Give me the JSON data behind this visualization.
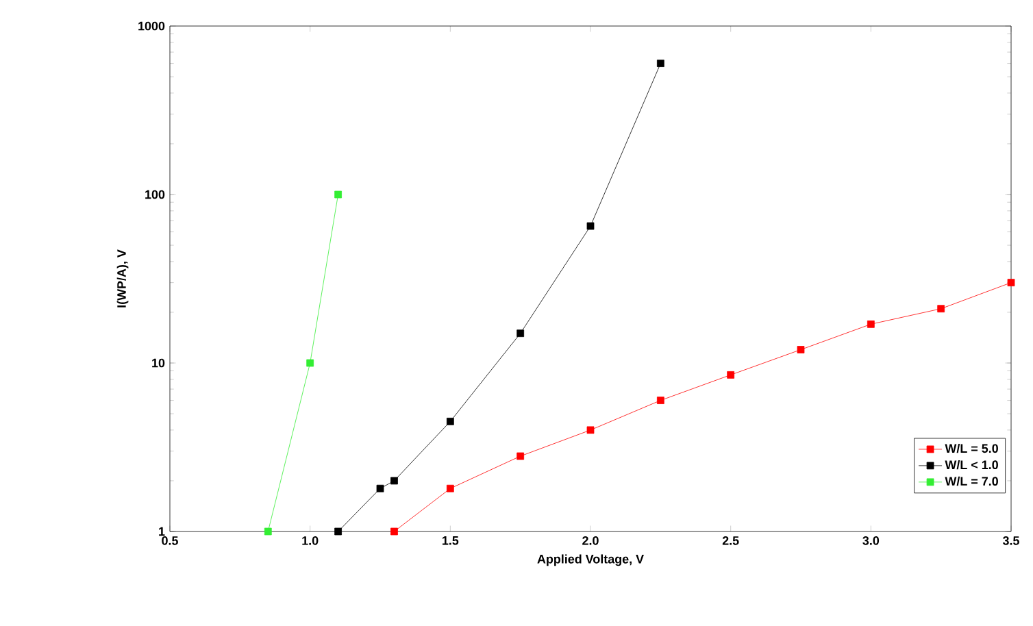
{
  "chart_data": {
    "type": "line",
    "xlabel": "Applied Voltage, V",
    "ylabel": "I(WP/A), V",
    "log": "y",
    "xlim": [
      0.5,
      3.5
    ],
    "ylim": [
      1,
      1000
    ],
    "xticks": [
      0.5,
      {
        "value": 1,
        "label": "1.0"
      },
      1.5,
      {
        "value": 2,
        "label": "2.0"
      },
      2.5,
      {
        "value": 3,
        "label": "3.0"
      },
      3.5
    ],
    "yticks": [
      1,
      10,
      100,
      1000
    ],
    "legend": "bottom right",
    "marker": "square",
    "line_style": "solid",
    "series": [
      {
        "name": "W/L = 5.0",
        "color": "#ff0000",
        "x": [
          1.3,
          1.5,
          1.75,
          2.0,
          2.25,
          2.5,
          2.75,
          3.0,
          3.25,
          3.5
        ],
        "values": [
          1,
          1.8,
          2.8,
          4.0,
          6.0,
          8.5,
          12,
          17,
          21,
          30
        ]
      },
      {
        "name": "W/L < 1.0",
        "color": "#000000",
        "x": [
          1.1,
          1.25,
          1.3,
          1.5,
          1.75,
          2.0,
          2.25
        ],
        "values": [
          1,
          1.8,
          2.0,
          4.5,
          15,
          65,
          600
        ]
      },
      {
        "name": "W/L = 7.0",
        "color": "#33ee33",
        "x": [
          0.85,
          1.0,
          1.1
        ],
        "values": [
          1,
          10,
          100
        ]
      }
    ]
  }
}
